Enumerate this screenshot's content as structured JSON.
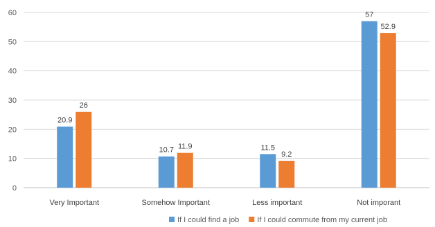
{
  "chart_data": {
    "type": "bar",
    "categories": [
      "Very Important",
      "Somehow Important",
      "Less important",
      "Not imporant"
    ],
    "series": [
      {
        "name": "If I could find a job",
        "values": [
          20.9,
          10.7,
          11.5,
          57
        ],
        "color": "#5B9BD5"
      },
      {
        "name": "If I could commute from my current job",
        "values": [
          26,
          11.9,
          9.2,
          52.9
        ],
        "color": "#ED7D31"
      }
    ],
    "ylim": [
      0,
      60
    ],
    "yticks": [
      0,
      10,
      20,
      30,
      40,
      50,
      60
    ],
    "grid": true,
    "legend_position": "bottom-right",
    "title": "",
    "xlabel": "",
    "ylabel": ""
  }
}
